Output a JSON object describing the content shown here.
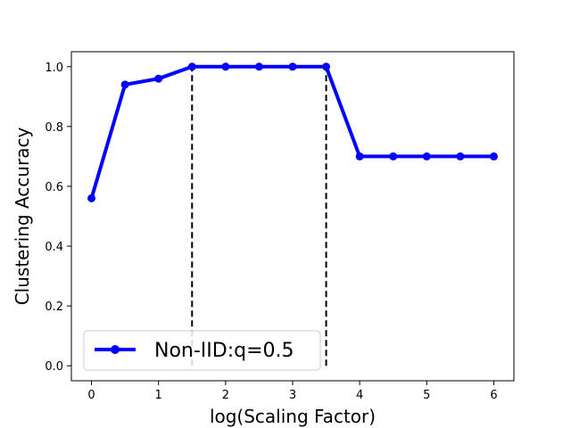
{
  "chart_data": {
    "type": "line",
    "xlabel": "log(Scaling Factor)",
    "ylabel": "Clustering Accuracy",
    "xlim": [
      -0.3,
      6.3
    ],
    "ylim": [
      -0.05,
      1.05
    ],
    "xticks": [
      0,
      1,
      2,
      3,
      4,
      5,
      6
    ],
    "yticks": [
      0.0,
      0.2,
      0.4,
      0.6,
      0.8,
      1.0
    ],
    "xtick_labels": [
      "0",
      "1",
      "2",
      "3",
      "4",
      "5",
      "6"
    ],
    "ytick_labels": [
      "0.0",
      "0.2",
      "0.4",
      "0.6",
      "0.8",
      "1.0"
    ],
    "grid": false,
    "legend_position": "lower-left",
    "series": [
      {
        "name": "Non-IID:q=0.5",
        "color": "#0000ff",
        "marker": "circle",
        "x": [
          0,
          0.5,
          1,
          1.5,
          2,
          2.5,
          3,
          3.5,
          4,
          4.5,
          5,
          5.5,
          6
        ],
        "y": [
          0.56,
          0.94,
          0.96,
          1.0,
          1.0,
          1.0,
          1.0,
          1.0,
          0.7,
          0.7,
          0.7,
          0.7,
          0.7
        ]
      }
    ],
    "vlines": [
      {
        "x": 1.5,
        "ymin": 0.0,
        "ymax": 1.0,
        "style": "dashed",
        "color": "#000000"
      },
      {
        "x": 3.5,
        "ymin": 0.0,
        "ymax": 1.0,
        "style": "dashed",
        "color": "#000000"
      }
    ]
  }
}
